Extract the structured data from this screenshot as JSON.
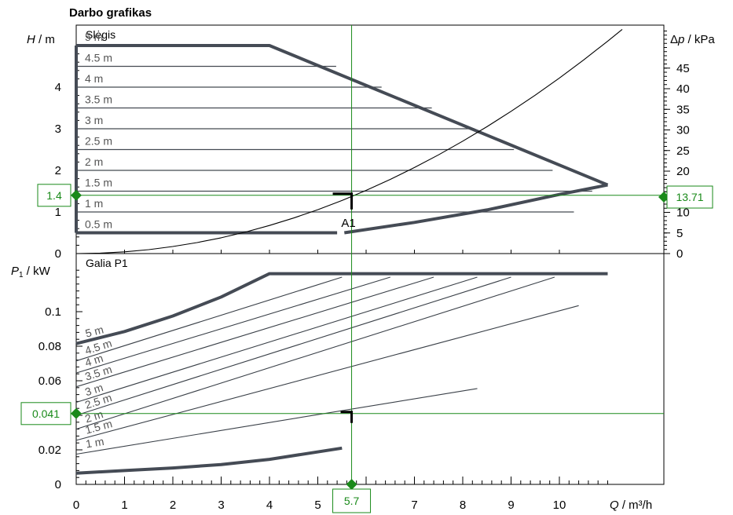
{
  "chart_data": [
    {
      "type": "line",
      "title": "Darbo grafikas",
      "panel_label": "Slėgis",
      "xlabel": "Q / m³/h",
      "ylabel": "H / m",
      "y2label": "Δp / kPa",
      "xlim": [
        0,
        11
      ],
      "ylim": [
        0,
        5
      ],
      "y2lim": [
        0,
        50
      ],
      "x_ticks": [
        "0",
        "1",
        "2",
        "3",
        "4",
        "5",
        "6",
        "7",
        "8",
        "9",
        "10"
      ],
      "y_ticks": [
        "0",
        "1",
        "2",
        "3",
        "4"
      ],
      "y2_ticks": [
        "0",
        "5",
        "10",
        "15",
        "20",
        "25",
        "30",
        "35",
        "40",
        "45"
      ],
      "grid": false,
      "series": [
        {
          "name": "5 m",
          "x": [
            0,
            4,
            11
          ],
          "y": [
            5,
            5,
            1.65
          ]
        },
        {
          "name": "4.5 m",
          "x": [
            0,
            5.38
          ],
          "y": [
            4.5,
            4.5
          ]
        },
        {
          "name": "4 m",
          "x": [
            0,
            6.32
          ],
          "y": [
            4,
            4
          ]
        },
        {
          "name": "3.5 m",
          "x": [
            0,
            7.36
          ],
          "y": [
            3.5,
            3.5
          ]
        },
        {
          "name": "3 m",
          "x": [
            0,
            8.24
          ],
          "y": [
            3,
            3
          ]
        },
        {
          "name": "2.5 m",
          "x": [
            0,
            9.06
          ],
          "y": [
            2.5,
            2.5
          ]
        },
        {
          "name": "2 m",
          "x": [
            0,
            9.86
          ],
          "y": [
            2,
            2
          ]
        },
        {
          "name": "1.5 m",
          "x": [
            0,
            10.68
          ],
          "y": [
            1.5,
            1.5
          ]
        },
        {
          "name": "1 m",
          "x": [
            0,
            10.3
          ],
          "y": [
            1,
            1
          ]
        },
        {
          "name": "0.5 m",
          "x": [
            0,
            5.4
          ],
          "y": [
            0.5,
            0.5
          ]
        },
        {
          "x": [
            5.55,
            7,
            8.5,
            10,
            11
          ],
          "y": [
            0.5,
            0.75,
            1.05,
            1.42,
            1.65
          ]
        },
        {
          "x": [
            0,
            0.5,
            1,
            1.5,
            2,
            2.5,
            3,
            3.5,
            4,
            4.5,
            5,
            5.5,
            6,
            6.5,
            7,
            7.5,
            8,
            8.5,
            9,
            9.5,
            10,
            10.5,
            11,
            11.3
          ],
          "y": [
            0,
            0.011,
            0.042,
            0.095,
            0.169,
            0.264,
            0.38,
            0.517,
            0.676,
            0.855,
            1.055,
            1.276,
            1.519,
            1.783,
            2.068,
            2.374,
            2.701,
            3.049,
            3.418,
            3.808,
            4.219,
            4.652,
            5.105,
            5.388
          ]
        }
      ],
      "operating_point": {
        "label": "A1",
        "q": "5.7",
        "h": "1.4",
        "dp": "13.71"
      }
    },
    {
      "type": "line",
      "panel_label": "Galia P1",
      "ylabel": "P1 / kW",
      "xlabel": "Q / m³/h",
      "xlim": [
        0,
        11
      ],
      "ylim": [
        0,
        0.12
      ],
      "y_ticks": [
        "0",
        "0.02",
        "0.04",
        "0.06",
        "0.08",
        "0.1"
      ],
      "grid": false,
      "series": [
        {
          "name": "5 m",
          "x": [
            0,
            1,
            2,
            3,
            4,
            11
          ],
          "y": [
            0.0815,
            0.0885,
            0.0975,
            0.1085,
            0.122,
            0.122
          ]
        },
        {
          "name": "4.5 m",
          "x": [
            0,
            5.5
          ],
          "y": [
            0.0715,
            0.12
          ]
        },
        {
          "name": "4 m",
          "x": [
            0,
            6.5
          ],
          "y": [
            0.0645,
            0.12
          ]
        },
        {
          "name": "3.5 m",
          "x": [
            0,
            7.4
          ],
          "y": [
            0.0565,
            0.12
          ]
        },
        {
          "name": "3 m",
          "x": [
            0,
            8.3
          ],
          "y": [
            0.0475,
            0.12
          ]
        },
        {
          "name": "2.5 m",
          "x": [
            0,
            9.0
          ],
          "y": [
            0.04,
            0.12
          ]
        },
        {
          "name": "2 m",
          "x": [
            0,
            9.9
          ],
          "y": [
            0.032,
            0.12
          ]
        },
        {
          "name": "1.5 m",
          "x": [
            0,
            10.4
          ],
          "y": [
            0.0255,
            0.1035
          ]
        },
        {
          "name": "1 m",
          "x": [
            0,
            8.3
          ],
          "y": [
            0.0175,
            0.0555
          ]
        },
        {
          "x": [
            0,
            1,
            2,
            3,
            4,
            5.5
          ],
          "y": [
            0.0065,
            0.008,
            0.0095,
            0.0115,
            0.0145,
            0.021
          ]
        }
      ],
      "operating_point": {
        "p1": "0.041"
      }
    }
  ]
}
